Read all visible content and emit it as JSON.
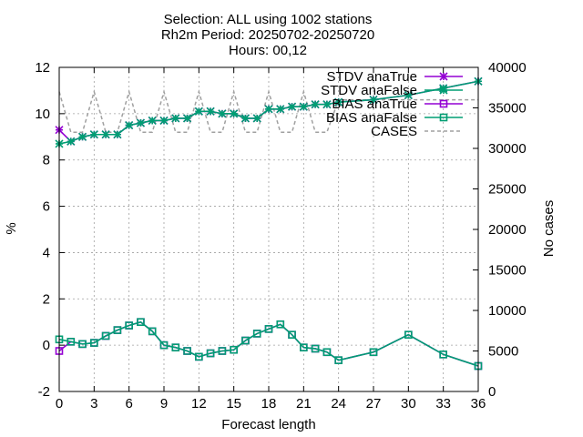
{
  "title_lines": [
    "Selection: ALL using  1002 stations",
    "Rh2m   Period: 20250702-20250720",
    "Hours: 00,12"
  ],
  "chart_data": {
    "type": "line",
    "xlabel": "Forecast length",
    "ylabel": "%",
    "y2label": "No cases",
    "xlim": [
      0,
      36
    ],
    "ylim": [
      -2,
      12
    ],
    "y2lim": [
      0,
      40000
    ],
    "xticks": [
      0,
      3,
      6,
      9,
      12,
      15,
      18,
      21,
      24,
      27,
      30,
      33,
      36
    ],
    "yticks": [
      -2,
      0,
      2,
      4,
      6,
      8,
      10,
      12
    ],
    "y2ticks": [
      0,
      5000,
      10000,
      15000,
      20000,
      25000,
      30000,
      35000,
      40000
    ],
    "grid": true,
    "legend_position": "top-right",
    "colors": {
      "anaTrue": "#9400d3",
      "anaFalse": "#009e73",
      "cases": "#a0a0a0"
    },
    "series": [
      {
        "name": "STDV anaTrue",
        "axis": "y",
        "marker": "star",
        "color": "#9400d3",
        "x": [
          0,
          1,
          2,
          3,
          4,
          5,
          6,
          7,
          8,
          9,
          10,
          11,
          12,
          13,
          14,
          15,
          16,
          17,
          18,
          19,
          20,
          21,
          22,
          23,
          24,
          27,
          30,
          33,
          36
        ],
        "values": [
          9.3,
          8.8,
          9.0,
          9.1,
          9.1,
          9.1,
          9.5,
          9.6,
          9.7,
          9.7,
          9.8,
          9.8,
          10.1,
          10.1,
          10.0,
          10.0,
          9.8,
          9.8,
          10.2,
          10.2,
          10.3,
          10.3,
          10.4,
          10.4,
          10.5,
          10.6,
          10.8,
          11.1,
          11.4
        ]
      },
      {
        "name": "STDV anaFalse",
        "axis": "y",
        "marker": "star",
        "color": "#009e73",
        "x": [
          0,
          1,
          2,
          3,
          4,
          5,
          6,
          7,
          8,
          9,
          10,
          11,
          12,
          13,
          14,
          15,
          16,
          17,
          18,
          19,
          20,
          21,
          22,
          23,
          24,
          27,
          30,
          33,
          36
        ],
        "values": [
          8.7,
          8.8,
          9.0,
          9.1,
          9.1,
          9.1,
          9.5,
          9.6,
          9.7,
          9.7,
          9.8,
          9.8,
          10.1,
          10.1,
          10.0,
          10.0,
          9.8,
          9.8,
          10.2,
          10.2,
          10.3,
          10.3,
          10.4,
          10.4,
          10.5,
          10.6,
          10.8,
          11.1,
          11.4
        ]
      },
      {
        "name": "BIAS anaTrue",
        "axis": "y",
        "marker": "square",
        "color": "#9400d3",
        "x": [
          0,
          1,
          2,
          3,
          4,
          5,
          6,
          7,
          8,
          9,
          10,
          11,
          12,
          13,
          14,
          15,
          16,
          17,
          18,
          19,
          20,
          21,
          22,
          23,
          24,
          27,
          30,
          33,
          36
        ],
        "values": [
          -0.25,
          0.15,
          0.05,
          0.1,
          0.4,
          0.65,
          0.85,
          1.0,
          0.6,
          0.0,
          -0.1,
          -0.25,
          -0.5,
          -0.35,
          -0.25,
          -0.2,
          0.2,
          0.5,
          0.7,
          0.9,
          0.45,
          -0.1,
          -0.15,
          -0.3,
          -0.65,
          -0.3,
          0.45,
          -0.4,
          -0.9
        ]
      },
      {
        "name": "BIAS anaFalse",
        "axis": "y",
        "marker": "square",
        "color": "#009e73",
        "x": [
          0,
          1,
          2,
          3,
          4,
          5,
          6,
          7,
          8,
          9,
          10,
          11,
          12,
          13,
          14,
          15,
          16,
          17,
          18,
          19,
          20,
          21,
          22,
          23,
          24,
          27,
          30,
          33,
          36
        ],
        "values": [
          0.25,
          0.15,
          0.05,
          0.1,
          0.4,
          0.65,
          0.85,
          1.0,
          0.6,
          0.0,
          -0.1,
          -0.25,
          -0.5,
          -0.35,
          -0.25,
          -0.2,
          0.2,
          0.5,
          0.7,
          0.9,
          0.45,
          -0.1,
          -0.15,
          -0.3,
          -0.65,
          -0.3,
          0.45,
          -0.4,
          -0.9
        ]
      },
      {
        "name": "CASES",
        "axis": "y2",
        "marker": "none",
        "color": "#a0a0a0",
        "dashed": true,
        "x": [
          0,
          1,
          2,
          3,
          4,
          5,
          6,
          7,
          8,
          9,
          10,
          11,
          12,
          13,
          14,
          15,
          16,
          17,
          18,
          19,
          20,
          21,
          22,
          23,
          24,
          27,
          30,
          33,
          36
        ],
        "values": [
          37000,
          32000,
          32000,
          37000,
          32000,
          32000,
          37000,
          32000,
          32000,
          37000,
          32000,
          32000,
          37000,
          32000,
          32000,
          37000,
          32000,
          32000,
          37000,
          32000,
          32000,
          37000,
          32000,
          32000,
          36000,
          36000,
          36000,
          36000,
          36000
        ]
      }
    ]
  }
}
